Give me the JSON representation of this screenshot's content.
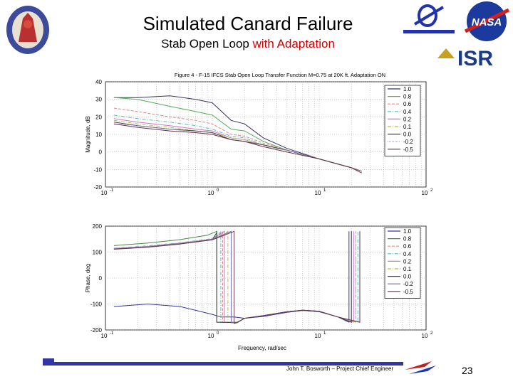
{
  "slide": {
    "title": "Simulated Canard Failure",
    "subtitle_prefix": "Stab Open Loop ",
    "subtitle_highlight": "with Adaptation",
    "footer": "John T. Bosworth – Project Chief Engineer",
    "page_number": "23",
    "logo_nasa": "NASA",
    "logo_isr": "ISR",
    "accent_color": "#3333aa",
    "highlight_color": "#cc0000"
  },
  "chart_data": [
    {
      "type": "line",
      "title": "Figure 4 - F-15 IFCS Stab Open Loop Transfer Function M=0.75 at 20K ft. Adaptation ON",
      "xlabel": "",
      "ylabel": "Magnitude, dB",
      "xscale": "log",
      "xlim": [
        0.1,
        100
      ],
      "ylim": [
        -20,
        40
      ],
      "xticks": [
        "10^-1",
        "10^0",
        "10^1",
        "10^2"
      ],
      "yticks": [
        40,
        30,
        20,
        10,
        0,
        -10,
        -20
      ],
      "grid": true,
      "legend": "top-right",
      "x": [
        0.12,
        0.2,
        0.4,
        0.7,
        1,
        1.5,
        2,
        3,
        5,
        10,
        20,
        25
      ],
      "series": [
        {
          "name": "1.0",
          "color": "#333366",
          "dash": "",
          "values": [
            31,
            31,
            32,
            30,
            28,
            18,
            16,
            8,
            2,
            -4,
            -9,
            -11
          ]
        },
        {
          "name": "0.8",
          "color": "#55aa55",
          "dash": "",
          "values": [
            31,
            30,
            26,
            23,
            21,
            13,
            12,
            6,
            1,
            -4,
            -9,
            -11
          ]
        },
        {
          "name": "0.6",
          "color": "#dd8888",
          "dash": "4,2",
          "values": [
            25,
            23,
            20,
            18,
            16,
            10,
            9,
            5,
            1,
            -4,
            -9,
            -11
          ]
        },
        {
          "name": "0.4",
          "color": "#55bbbb",
          "dash": "5,2,1,2",
          "values": [
            21,
            19,
            17,
            15,
            13,
            9,
            8,
            4,
            1,
            -4,
            -9,
            -11
          ]
        },
        {
          "name": "0.2",
          "color": "#cc77cc",
          "dash": "",
          "values": [
            19,
            17,
            15,
            13,
            12,
            8,
            7,
            4,
            1,
            -4,
            -9,
            -11
          ]
        },
        {
          "name": "0.1",
          "color": "#bbbb44",
          "dash": "5,2,1,2",
          "values": [
            18,
            16,
            14,
            12,
            11,
            8,
            7,
            4,
            1,
            -4,
            -9,
            -11
          ]
        },
        {
          "name": "0.0",
          "color": "#444444",
          "dash": "",
          "values": [
            17,
            15,
            13,
            12,
            11,
            7,
            6,
            4,
            1,
            -4,
            -9,
            -11
          ]
        },
        {
          "name": "-0.2",
          "color": "#9999dd",
          "dash": "1,1",
          "values": [
            16,
            15,
            13,
            11,
            10,
            7,
            6,
            3,
            1,
            -4,
            -9,
            -11
          ]
        },
        {
          "name": "-0.5",
          "color": "#663344",
          "dash": "",
          "values": [
            16,
            14,
            12,
            11,
            10,
            7,
            6,
            3,
            0,
            -4,
            -9,
            -12
          ]
        }
      ]
    },
    {
      "type": "line",
      "title": "",
      "xlabel": "Frequency, rad/sec",
      "ylabel": "Phase, deg",
      "xscale": "log",
      "xlim": [
        0.1,
        100
      ],
      "ylim": [
        -200,
        200
      ],
      "xticks": [
        "10^-1",
        "10^0",
        "10^1",
        "10^2"
      ],
      "yticks": [
        200,
        100,
        0,
        -100,
        -200
      ],
      "grid": true,
      "legend": "top-right",
      "series": [
        {
          "name": "1.0",
          "color": "#333399",
          "dash": "",
          "x": [
            0.12,
            0.25,
            0.5,
            1,
            1.2,
            1.6,
            2,
            3,
            5,
            7,
            10,
            15,
            19,
            19
          ],
          "values": [
            -110,
            -100,
            -110,
            -140,
            -150,
            -150,
            -155,
            -148,
            -132,
            -125,
            -130,
            -150,
            -170,
            180
          ]
        },
        {
          "name": "0.8",
          "color": "#448844",
          "dash": "",
          "x": [
            0.12,
            0.25,
            0.5,
            0.9,
            1.1,
            1.1,
            1.7,
            2,
            3,
            5,
            7,
            10,
            15,
            20,
            20
          ],
          "values": [
            125,
            135,
            148,
            165,
            180,
            -170,
            -170,
            -155,
            -145,
            -130,
            -124,
            -128,
            -150,
            -170,
            180
          ]
        },
        {
          "name": "0.6",
          "color": "#dd8888",
          "dash": "4,2",
          "x": [
            0.12,
            0.25,
            0.5,
            1,
            1.25,
            1.25,
            1.7,
            2,
            3,
            5,
            7,
            10,
            15,
            22,
            22
          ],
          "values": [
            112,
            122,
            135,
            150,
            178,
            -170,
            -172,
            -155,
            -145,
            -130,
            -124,
            -128,
            -150,
            -170,
            180
          ]
        },
        {
          "name": "0.4",
          "color": "#55bbbb",
          "dash": "5,2,1,2",
          "x": [
            0.12,
            0.25,
            0.5,
            1,
            1.2,
            1.2,
            1.7,
            2,
            3,
            5,
            7,
            10,
            15,
            23,
            23
          ],
          "values": [
            115,
            124,
            136,
            152,
            178,
            -170,
            -172,
            -155,
            -145,
            -130,
            -124,
            -128,
            -150,
            -170,
            180
          ]
        },
        {
          "name": "0.2",
          "color": "#cc77cc",
          "dash": "",
          "x": [
            0.12,
            0.25,
            0.5,
            1,
            1.3,
            1.3,
            1.7,
            2,
            3,
            5,
            7,
            10,
            15,
            21,
            21
          ],
          "values": [
            114,
            122,
            134,
            150,
            180,
            -170,
            -172,
            -155,
            -145,
            -130,
            -124,
            -128,
            -150,
            -170,
            180
          ]
        },
        {
          "name": "0.1",
          "color": "#bbbb44",
          "dash": "5,2,1,2",
          "x": [
            0.12,
            0.25,
            0.5,
            1,
            1.4,
            1.4,
            1.7,
            2,
            3,
            5,
            7,
            10,
            15,
            22,
            22
          ],
          "values": [
            113,
            121,
            133,
            149,
            180,
            -170,
            -172,
            -155,
            -145,
            -130,
            -124,
            -128,
            -150,
            -170,
            180
          ]
        },
        {
          "name": "0.0",
          "color": "#444444",
          "dash": "",
          "x": [
            0.12,
            0.25,
            0.5,
            1,
            1.1,
            1.1,
            1.7,
            2,
            3,
            5,
            7,
            10,
            15,
            20,
            20
          ],
          "values": [
            112,
            120,
            132,
            148,
            175,
            -170,
            -172,
            -155,
            -145,
            -130,
            -124,
            -128,
            -150,
            -170,
            180
          ]
        },
        {
          "name": "-0.2",
          "color": "#6666bb",
          "dash": "",
          "x": [
            0.12,
            0.25,
            0.5,
            1,
            1.5,
            1.5,
            1.7,
            2,
            3,
            5,
            7,
            10,
            15,
            24,
            24
          ],
          "values": [
            112,
            120,
            132,
            148,
            180,
            -172,
            -172,
            -155,
            -145,
            -130,
            -124,
            -128,
            -150,
            -170,
            180
          ]
        },
        {
          "name": "-0.5",
          "color": "#663344",
          "dash": "",
          "x": [
            0.12,
            0.25,
            0.5,
            1,
            1.6,
            1.6,
            1.7,
            2,
            3,
            5,
            7,
            10,
            15,
            24,
            24
          ],
          "values": [
            111,
            119,
            131,
            147,
            180,
            -175,
            -172,
            -155,
            -145,
            -130,
            -124,
            -128,
            -150,
            -170,
            180
          ]
        }
      ]
    }
  ]
}
